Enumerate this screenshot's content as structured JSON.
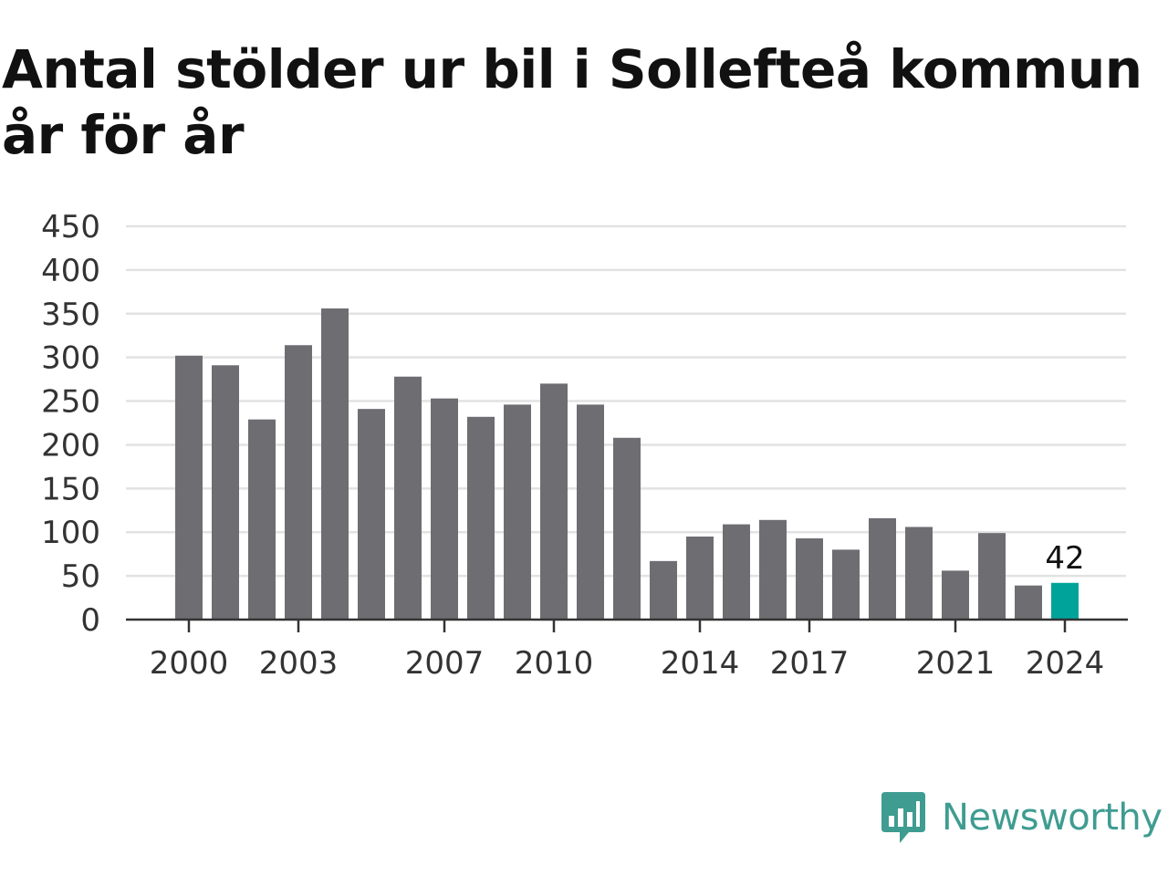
{
  "chart_data": {
    "type": "bar",
    "title": "Antal stölder ur bil i Sollefteå kommun år för år",
    "categories": [
      "2000",
      "2001",
      "2002",
      "2003",
      "2004",
      "2005",
      "2006",
      "2007",
      "2008",
      "2009",
      "2010",
      "2011",
      "2012",
      "2013",
      "2014",
      "2015",
      "2016",
      "2017",
      "2018",
      "2019",
      "2020",
      "2021",
      "2022",
      "2023",
      "2024"
    ],
    "values": [
      302,
      291,
      229,
      314,
      356,
      241,
      278,
      253,
      232,
      246,
      270,
      246,
      208,
      67,
      95,
      109,
      114,
      93,
      80,
      116,
      106,
      56,
      99,
      39,
      42
    ],
    "x_tick_labels": [
      "2000",
      "2003",
      "2007",
      "2010",
      "2014",
      "2017",
      "2021",
      "2024"
    ],
    "y_ticks": [
      0,
      50,
      100,
      150,
      200,
      250,
      300,
      350,
      400,
      450
    ],
    "ylim": [
      0,
      450
    ],
    "xlabel": "",
    "ylabel": "",
    "grid": true,
    "highlight": {
      "category": "2024",
      "label": "42"
    },
    "colors": {
      "bar": "#6e6d72",
      "highlight": "#00a39a",
      "grid": "#e2e2e2",
      "axis": "#333333"
    }
  },
  "brand": {
    "name": "Newsworthy",
    "color": "#3f9c91",
    "icon": "newsworthy-logo-icon"
  }
}
